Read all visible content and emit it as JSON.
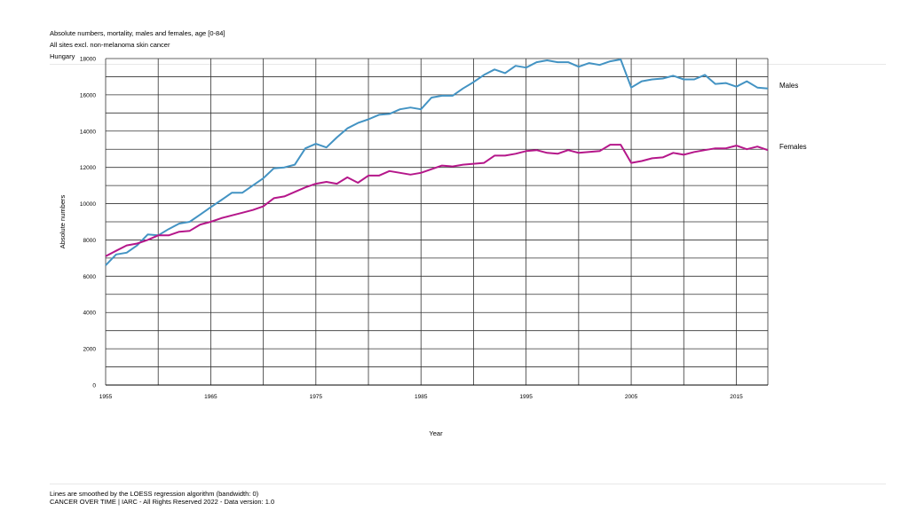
{
  "header": {
    "line1": "Absolute numbers, mortality, males and females, age [0-84]",
    "line2": "All sites excl. non-melanoma skin cancer",
    "line3": "Hungary"
  },
  "footer": {
    "line1": "Lines are smoothed by the LOESS regression algorithm (bandwidth: 0)",
    "line2": "CANCER OVER TIME | IARC - All Rights Reserved 2022 - Data version: 1.0"
  },
  "colors": {
    "males": "#4393c3",
    "females": "#b5178a",
    "grid": "#333333"
  },
  "chart_data": {
    "type": "line",
    "title": "",
    "xlabel": "Year",
    "ylabel": "Absolute numbers",
    "xlim": [
      1955,
      2018
    ],
    "ylim": [
      0,
      18000
    ],
    "x_ticks": [
      1955,
      1965,
      1975,
      1985,
      1995,
      2005,
      2015
    ],
    "y_ticks": [
      0,
      2000,
      4000,
      6000,
      8000,
      10000,
      12000,
      14000,
      16000,
      18000
    ],
    "grid": true,
    "legend": "line-end labels",
    "x": [
      1955,
      1956,
      1957,
      1958,
      1959,
      1960,
      1961,
      1962,
      1963,
      1964,
      1965,
      1966,
      1967,
      1968,
      1969,
      1970,
      1971,
      1972,
      1973,
      1974,
      1975,
      1976,
      1977,
      1978,
      1979,
      1980,
      1981,
      1982,
      1983,
      1984,
      1985,
      1986,
      1987,
      1988,
      1989,
      1990,
      1991,
      1992,
      1993,
      1994,
      1995,
      1996,
      1997,
      1998,
      1999,
      2000,
      2001,
      2002,
      2003,
      2004,
      2005,
      2006,
      2007,
      2008,
      2009,
      2010,
      2011,
      2012,
      2013,
      2014,
      2015,
      2016,
      2017,
      2018
    ],
    "series": [
      {
        "name": "Males",
        "values": [
          6600,
          7200,
          7300,
          7700,
          8300,
          8250,
          8600,
          8900,
          9000,
          9400,
          9800,
          10200,
          10600,
          10600,
          11000,
          11400,
          11950,
          12000,
          12150,
          13050,
          13300,
          13100,
          13650,
          14150,
          14450,
          14650,
          14900,
          14950,
          15200,
          15300,
          15200,
          15850,
          15950,
          15950,
          16350,
          16700,
          17100,
          17400,
          17200,
          17600,
          17500,
          17800,
          17900,
          17800,
          17800,
          17550,
          17750,
          17650,
          17850,
          17950,
          16400,
          16750,
          16850,
          16900,
          17050,
          16850,
          16850,
          17100,
          16600,
          16650,
          16450,
          16750,
          16400,
          16350
        ]
      },
      {
        "name": "Females",
        "values": [
          7100,
          7400,
          7700,
          7800,
          8000,
          8250,
          8250,
          8450,
          8500,
          8850,
          9000,
          9200,
          9350,
          9500,
          9650,
          9850,
          10300,
          10400,
          10650,
          10900,
          11100,
          11200,
          11100,
          11450,
          11150,
          11550,
          11550,
          11800,
          11700,
          11600,
          11700,
          11900,
          12100,
          12050,
          12150,
          12200,
          12250,
          12650,
          12650,
          12750,
          12900,
          12950,
          12800,
          12750,
          12950,
          12800,
          12850,
          12900,
          13250,
          13250,
          12250,
          12350,
          12500,
          12550,
          12800,
          12700,
          12850,
          12950,
          13050,
          13050,
          13200,
          13000,
          13150,
          12950
        ]
      }
    ]
  }
}
